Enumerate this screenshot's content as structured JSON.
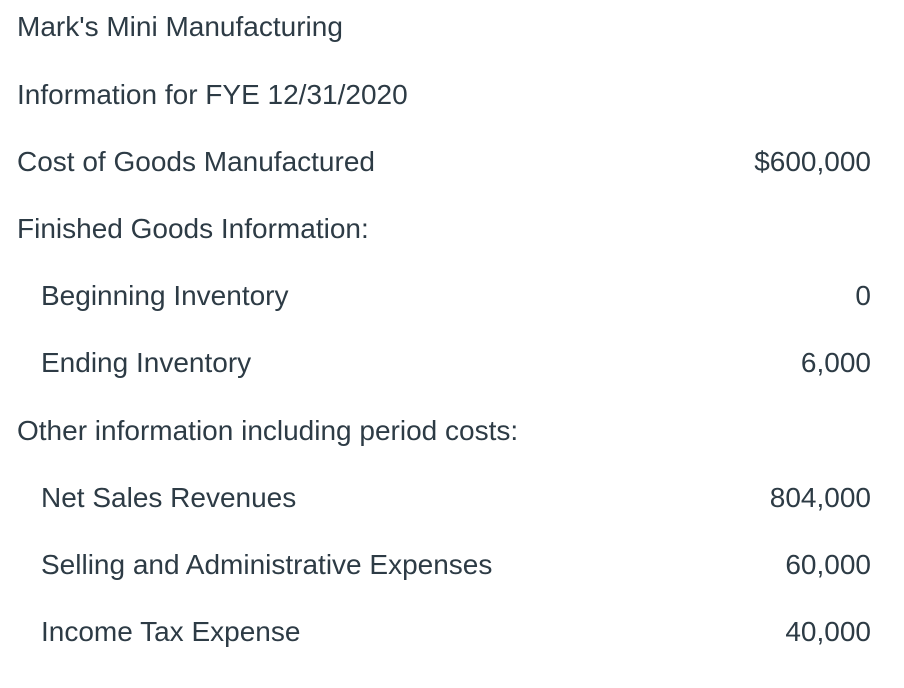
{
  "title": "Mark's Mini Manufacturing",
  "subtitle": "Information for FYE 12/31/2020",
  "rows": [
    {
      "label": "Cost of Goods Manufactured",
      "value": "$600,000"
    },
    {
      "label": "Finished Goods Information:",
      "value": ""
    },
    {
      "label": "Beginning Inventory",
      "value": "0"
    },
    {
      "label": "Ending Inventory",
      "value": "6,000"
    },
    {
      "label": "Other information including period costs:",
      "value": ""
    },
    {
      "label": "Net Sales Revenues",
      "value": "804,000"
    },
    {
      "label": "Selling and Administrative Expenses",
      "value": "60,000"
    },
    {
      "label": "Income Tax Expense",
      "value": "40,000"
    }
  ]
}
